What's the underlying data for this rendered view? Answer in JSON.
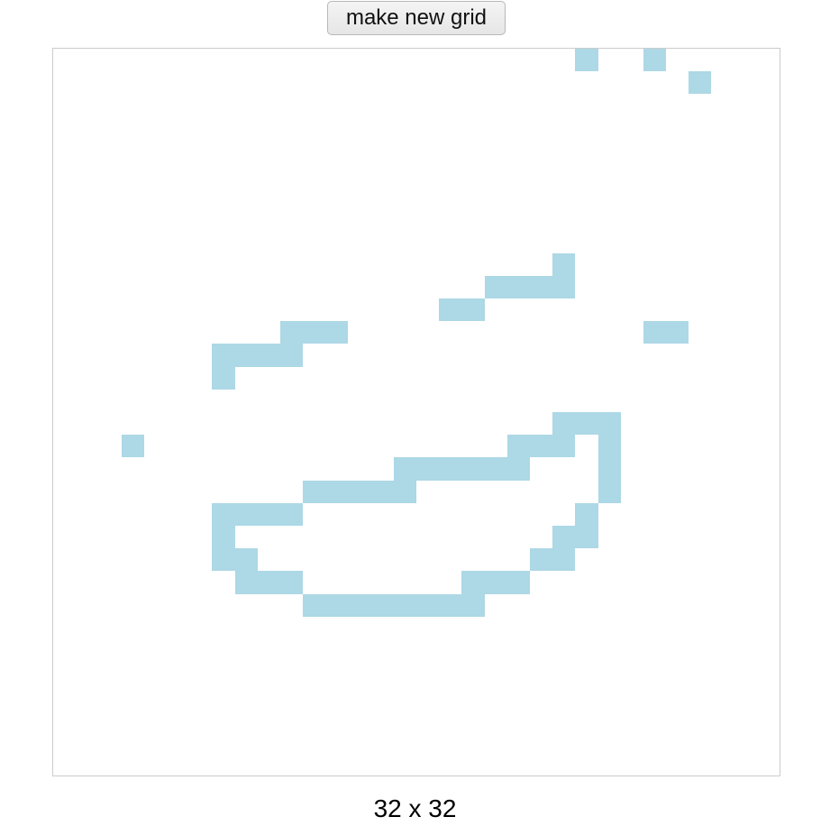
{
  "button": {
    "label": "make new grid"
  },
  "grid": {
    "rows": 32,
    "cols": 32,
    "fill_color": "#add8e6",
    "background_color": "#ffffff",
    "filled_cells": [
      [
        0,
        23
      ],
      [
        0,
        26
      ],
      [
        1,
        28
      ],
      [
        9,
        22
      ],
      [
        10,
        19
      ],
      [
        10,
        20
      ],
      [
        10,
        21
      ],
      [
        10,
        22
      ],
      [
        11,
        17
      ],
      [
        11,
        18
      ],
      [
        12,
        10
      ],
      [
        12,
        11
      ],
      [
        12,
        12
      ],
      [
        12,
        26
      ],
      [
        12,
        27
      ],
      [
        13,
        7
      ],
      [
        13,
        8
      ],
      [
        13,
        9
      ],
      [
        13,
        10
      ],
      [
        14,
        7
      ],
      [
        16,
        22
      ],
      [
        16,
        23
      ],
      [
        16,
        24
      ],
      [
        17,
        3
      ],
      [
        17,
        20
      ],
      [
        17,
        21
      ],
      [
        17,
        22
      ],
      [
        17,
        24
      ],
      [
        18,
        15
      ],
      [
        18,
        16
      ],
      [
        18,
        17
      ],
      [
        18,
        18
      ],
      [
        18,
        19
      ],
      [
        18,
        20
      ],
      [
        18,
        24
      ],
      [
        19,
        11
      ],
      [
        19,
        12
      ],
      [
        19,
        13
      ],
      [
        19,
        14
      ],
      [
        19,
        15
      ],
      [
        19,
        24
      ],
      [
        20,
        7
      ],
      [
        20,
        8
      ],
      [
        20,
        9
      ],
      [
        20,
        10
      ],
      [
        20,
        23
      ],
      [
        21,
        7
      ],
      [
        21,
        22
      ],
      [
        21,
        23
      ],
      [
        22,
        7
      ],
      [
        22,
        8
      ],
      [
        22,
        21
      ],
      [
        22,
        22
      ],
      [
        23,
        8
      ],
      [
        23,
        9
      ],
      [
        23,
        10
      ],
      [
        23,
        18
      ],
      [
        23,
        19
      ],
      [
        23,
        20
      ],
      [
        24,
        11
      ],
      [
        24,
        12
      ],
      [
        24,
        13
      ],
      [
        24,
        14
      ],
      [
        24,
        15
      ],
      [
        24,
        16
      ],
      [
        24,
        17
      ],
      [
        24,
        18
      ]
    ]
  },
  "size_label": "32 x 32"
}
